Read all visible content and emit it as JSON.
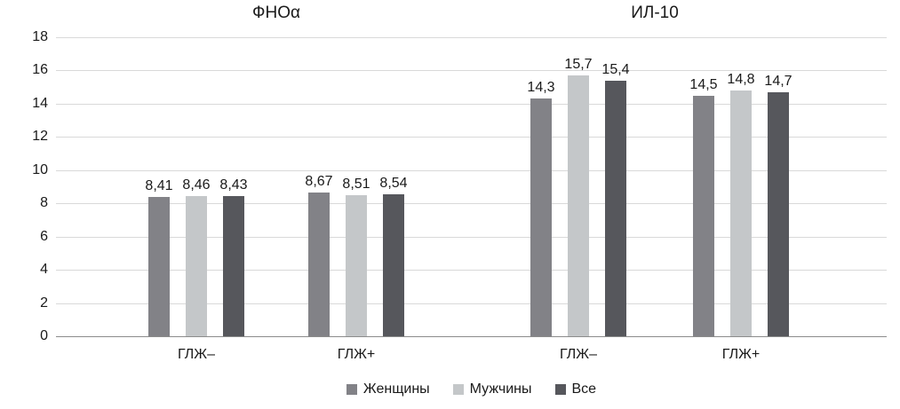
{
  "chart_data": {
    "type": "bar",
    "panels": [
      {
        "title": "ФНОα",
        "categories": [
          "ГЛЖ–",
          "ГЛЖ+"
        ],
        "series": [
          {
            "name": "Женщины",
            "values": [
              8.41,
              8.67
            ]
          },
          {
            "name": "Мужчины",
            "values": [
              8.46,
              8.51
            ]
          },
          {
            "name": "Все",
            "values": [
              8.43,
              8.54
            ]
          }
        ]
      },
      {
        "title": "ИЛ-10",
        "categories": [
          "ГЛЖ–",
          "ГЛЖ+"
        ],
        "series": [
          {
            "name": "Женщины",
            "values": [
              14.3,
              14.5
            ]
          },
          {
            "name": "Мужчины",
            "values": [
              15.7,
              14.8
            ]
          },
          {
            "name": "Все",
            "values": [
              15.4,
              14.7
            ]
          }
        ]
      }
    ],
    "legend": [
      "Женщины",
      "Мужчины",
      "Все"
    ],
    "legend_position": "bottom",
    "y_ticks": [
      0,
      2,
      4,
      6,
      8,
      10,
      12,
      14,
      16,
      18
    ],
    "ylim": [
      0,
      18
    ],
    "grid": true,
    "decimal_separator": ",",
    "colors": {
      "series": [
        "#828287",
        "#c4c7c9",
        "#56575c"
      ],
      "gridline": "#d9d9d9",
      "axis": "#8c8c8c",
      "text": "#1a1a1a"
    }
  }
}
